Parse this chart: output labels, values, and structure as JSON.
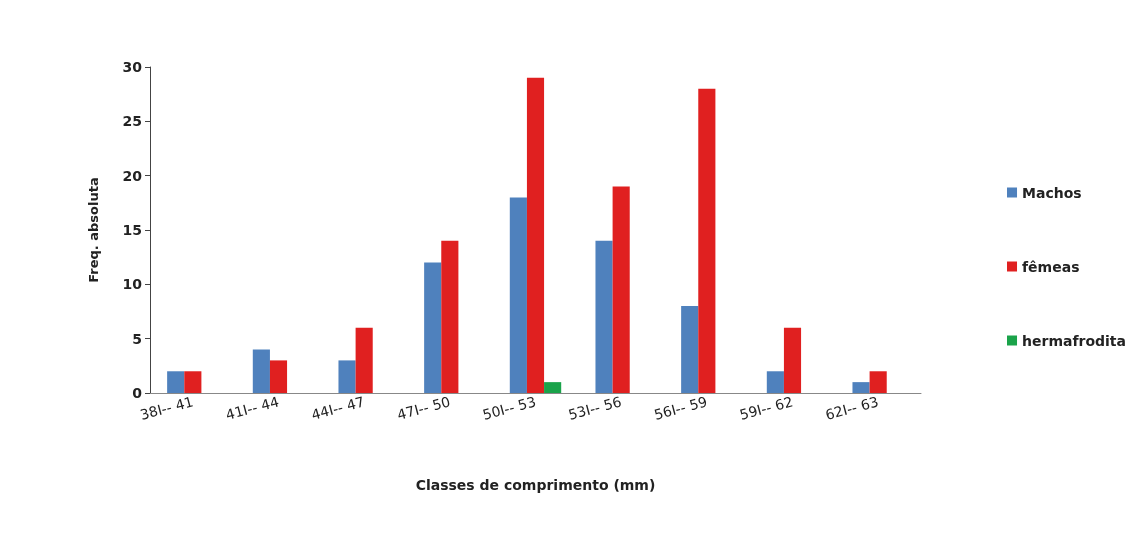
{
  "chart_data": {
    "type": "bar",
    "xlabel": "Classes de comprimento (mm)",
    "ylabel": "Freq. absoluta",
    "categories": [
      "38I-- 41",
      "41I-- 44",
      "44I-- 47",
      "47I-- 50",
      "50I-- 53",
      "53I-- 56",
      "56I-- 59",
      "59I-- 62",
      "62I-- 63"
    ],
    "series": [
      {
        "name": "Machos",
        "color": "#4f81bd",
        "values": [
          2,
          4,
          3,
          12,
          18,
          14,
          8,
          2,
          1
        ]
      },
      {
        "name": "fêmeas",
        "color": "#e02020",
        "values": [
          2,
          3,
          6,
          14,
          29,
          19,
          28,
          6,
          2
        ]
      },
      {
        "name": "hermafrodita",
        "color": "#1aa34a",
        "values": [
          0,
          0,
          0,
          0,
          1,
          0,
          0,
          0,
          0
        ]
      }
    ],
    "ylim": [
      0,
      30
    ],
    "yticks": [
      0,
      5,
      10,
      15,
      20,
      25,
      30
    ],
    "grid": false,
    "legend": "right"
  }
}
